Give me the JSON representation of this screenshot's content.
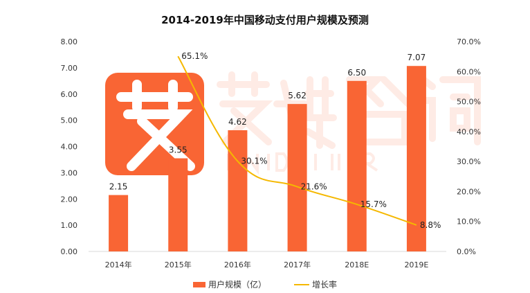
{
  "chart_data": {
    "type": "bar",
    "title": "2014-2019年中国移动支付用户规模及预测",
    "categories": [
      "2014年",
      "2015年",
      "2016年",
      "2017年",
      "2018E",
      "2019E"
    ],
    "series": [
      {
        "name": "用户规模（亿）",
        "type": "bar",
        "axis": "left",
        "color": "#F96534",
        "values": [
          2.15,
          3.55,
          4.62,
          5.62,
          6.5,
          7.07
        ],
        "labels": [
          "2.15",
          "3.55",
          "4.62",
          "5.62",
          "6.50",
          "7.07"
        ]
      },
      {
        "name": "增长率",
        "type": "line",
        "axis": "right",
        "color": "#F5B800",
        "values": [
          null,
          65.1,
          30.1,
          21.6,
          15.7,
          8.8
        ],
        "labels": [
          null,
          "65.1%",
          "30.1%",
          "21.6%",
          "15.7%",
          "8.8%"
        ]
      }
    ],
    "ylim": [
      0,
      8
    ],
    "y2lim": [
      0,
      70
    ],
    "yticks": [
      "0.00",
      "1.00",
      "2.00",
      "3.00",
      "4.00",
      "5.00",
      "6.00",
      "7.00",
      "8.00"
    ],
    "y2ticks": [
      "0.0%",
      "10.0%",
      "20.0%",
      "30.0%",
      "40.0%",
      "50.0%",
      "60.0%",
      "70.0%"
    ],
    "grid": false,
    "legend": "bottom"
  },
  "watermark": {
    "cn": "艾媒咨询",
    "en": "iiMedia Research"
  }
}
